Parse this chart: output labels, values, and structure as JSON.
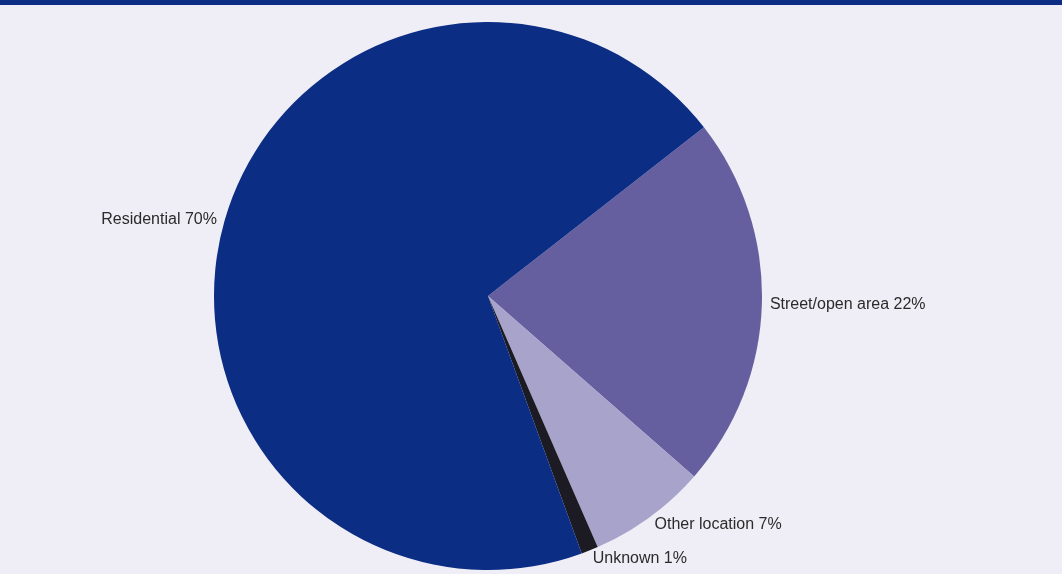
{
  "chart_data": {
    "type": "pie",
    "categories": [
      "Street/open area",
      "Other location",
      "Unknown",
      "Residential"
    ],
    "values": [
      22,
      7,
      1,
      70
    ],
    "colors": [
      "#655f9f",
      "#a7a3cb",
      "#1c1a22",
      "#0b2d84"
    ],
    "value_labels": [
      "22%",
      "7%",
      "1%",
      "70%"
    ]
  }
}
